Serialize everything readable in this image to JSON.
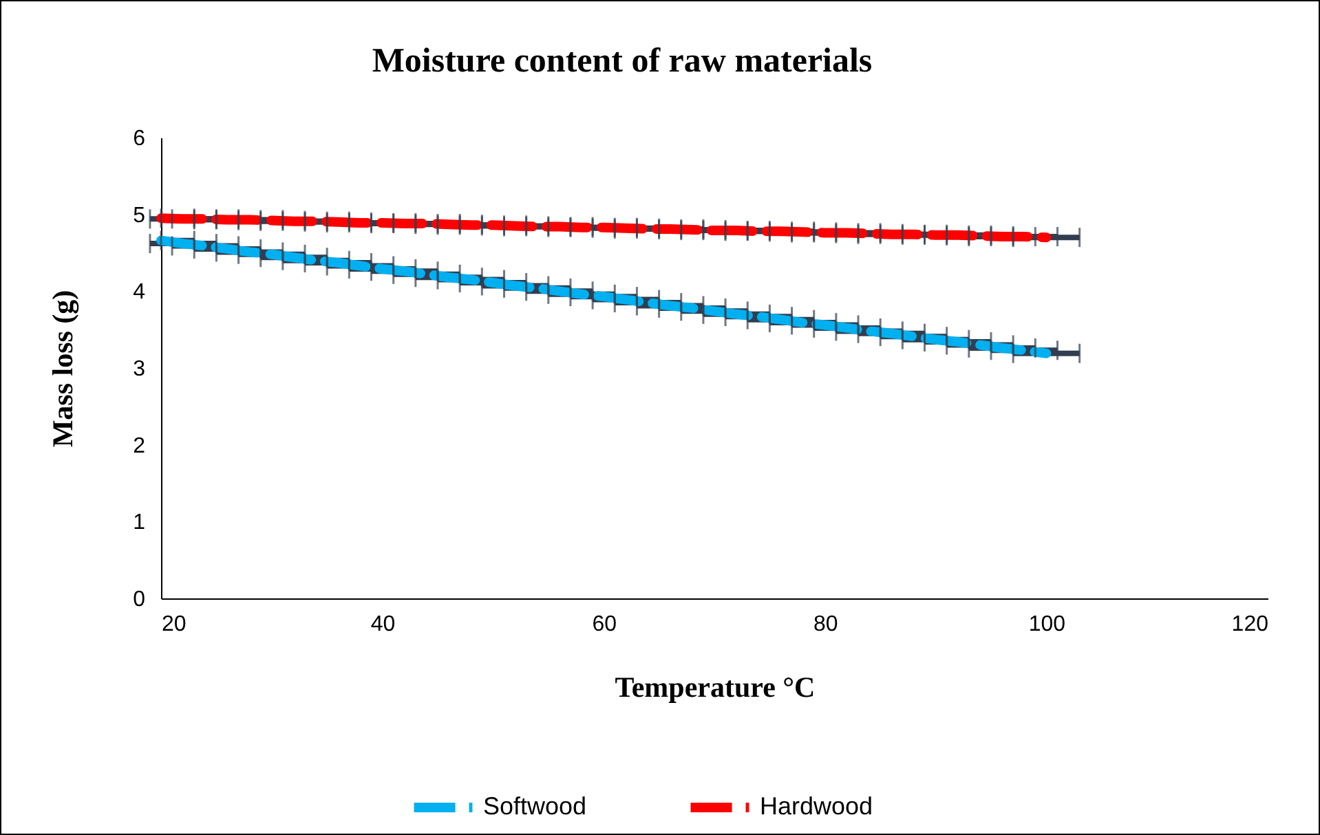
{
  "chart_data": {
    "type": "line",
    "title": "Moisture content of raw materials",
    "xlabel": "Temperature °C",
    "ylabel": "Mass loss (g)",
    "x": [
      20,
      22,
      24,
      26,
      28,
      30,
      32,
      34,
      36,
      38,
      40,
      42,
      44,
      46,
      48,
      50,
      52,
      54,
      56,
      58,
      60,
      62,
      64,
      66,
      68,
      70,
      72,
      74,
      76,
      78,
      80,
      82,
      84,
      86,
      88,
      90,
      92,
      94,
      96,
      98,
      100
    ],
    "series": [
      {
        "name": "Softwood",
        "color": "#00b0f0",
        "values": [
          4.66,
          4.62,
          4.59,
          4.55,
          4.51,
          4.48,
          4.44,
          4.4,
          4.37,
          4.33,
          4.29,
          4.26,
          4.22,
          4.18,
          4.15,
          4.11,
          4.07,
          4.04,
          4.0,
          3.96,
          3.93,
          3.89,
          3.85,
          3.81,
          3.78,
          3.74,
          3.7,
          3.67,
          3.63,
          3.59,
          3.56,
          3.52,
          3.48,
          3.45,
          3.41,
          3.37,
          3.34,
          3.3,
          3.26,
          3.23,
          3.19
        ],
        "xerrors": [
          [
            20,
            23
          ],
          3,
          3,
          3,
          3,
          3,
          3,
          3,
          3,
          3,
          3,
          3,
          3,
          3,
          3,
          3,
          3,
          3,
          3,
          3,
          3,
          3,
          3,
          3,
          3,
          3,
          3,
          3,
          3,
          3,
          3,
          3,
          3,
          3,
          3,
          3,
          3,
          3,
          3,
          3,
          3
        ]
      },
      {
        "name": "Hardwood",
        "color": "#ff0000",
        "values": [
          4.95,
          4.94,
          4.94,
          4.93,
          4.93,
          4.92,
          4.91,
          4.91,
          4.9,
          4.89,
          4.89,
          4.88,
          4.88,
          4.87,
          4.86,
          4.86,
          4.85,
          4.84,
          4.84,
          4.83,
          4.83,
          4.82,
          4.81,
          4.81,
          4.8,
          4.79,
          4.79,
          4.78,
          4.78,
          4.77,
          4.76,
          4.76,
          4.75,
          4.74,
          4.74,
          4.73,
          4.73,
          4.72,
          4.71,
          4.71,
          4.7
        ],
        "xerrors": [
          [
            20,
            23
          ],
          3,
          3,
          3,
          3,
          3,
          3,
          3,
          3,
          3,
          3,
          3,
          3,
          3,
          3,
          3,
          3,
          3,
          3,
          3,
          3,
          3,
          3,
          3,
          3,
          3,
          3,
          3,
          3,
          3,
          3,
          3,
          3,
          3,
          3,
          3,
          3,
          3,
          3,
          3,
          3
        ]
      }
    ],
    "xlim": [
      20,
      120
    ],
    "xticks": [
      20,
      40,
      60,
      80,
      100,
      120
    ],
    "ylim": [
      0,
      6
    ],
    "yticks": [
      0,
      1,
      2,
      3,
      4,
      5,
      6
    ],
    "grid": false,
    "legend": "bottom",
    "marker": "none",
    "line_style": "dashed"
  }
}
